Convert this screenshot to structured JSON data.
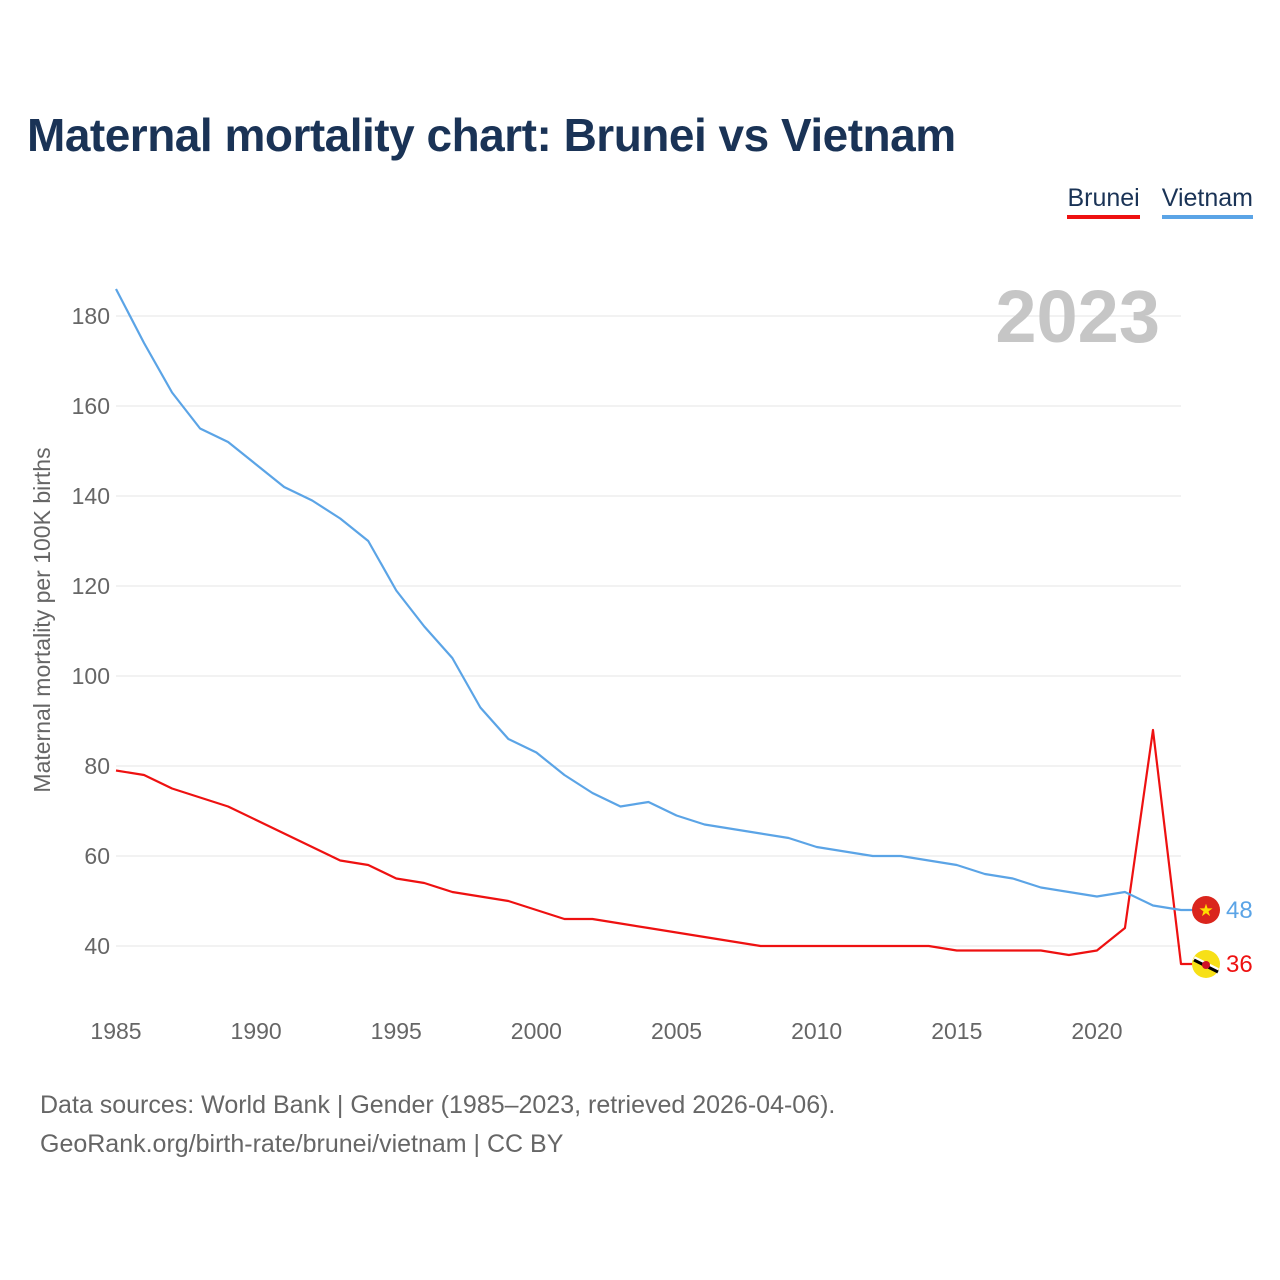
{
  "title": "Maternal mortality chart: Brunei vs Vietnam",
  "legend": [
    {
      "label": "Brunei",
      "color": "#ee1111"
    },
    {
      "label": "Vietnam",
      "color": "#5ba4e6"
    }
  ],
  "footer": {
    "line1": "Data sources: World Bank | Gender (1985–2023, retrieved 2026-04-06).",
    "line2": "GeoRank.org/birth-rate/brunei/vietnam | CC BY"
  },
  "chart_data": {
    "type": "line",
    "title": "Maternal mortality chart: Brunei vs Vietnam",
    "xlabel": "",
    "ylabel": "Maternal mortality per 100K births",
    "year_label": "2023",
    "xlim": [
      1985,
      2023
    ],
    "ylim": [
      28,
      188
    ],
    "x_ticks": [
      1985,
      1990,
      1995,
      2000,
      2005,
      2010,
      2015,
      2020
    ],
    "y_ticks": [
      40,
      60,
      80,
      100,
      120,
      140,
      160,
      180
    ],
    "grid": true,
    "legend_position": "top-right",
    "x": [
      1985,
      1986,
      1987,
      1988,
      1989,
      1990,
      1991,
      1992,
      1993,
      1994,
      1995,
      1996,
      1997,
      1998,
      1999,
      2000,
      2001,
      2002,
      2003,
      2004,
      2005,
      2006,
      2007,
      2008,
      2009,
      2010,
      2011,
      2012,
      2013,
      2014,
      2015,
      2016,
      2017,
      2018,
      2019,
      2020,
      2021,
      2022,
      2023
    ],
    "series": [
      {
        "name": "Brunei",
        "color": "#ee1111",
        "flag": "brunei-flag-icon",
        "end_label": "36",
        "values": [
          79,
          78,
          75,
          73,
          71,
          68,
          65,
          62,
          59,
          58,
          55,
          54,
          52,
          51,
          50,
          48,
          46,
          46,
          45,
          44,
          43,
          42,
          41,
          40,
          40,
          40,
          40,
          40,
          40,
          40,
          39,
          39,
          39,
          39,
          38,
          39,
          44,
          88,
          36
        ]
      },
      {
        "name": "Vietnam",
        "color": "#5ba4e6",
        "flag": "vietnam-flag-icon",
        "end_label": "48",
        "values": [
          186,
          174,
          163,
          155,
          152,
          147,
          142,
          139,
          135,
          130,
          119,
          111,
          104,
          93,
          86,
          83,
          78,
          74,
          71,
          72,
          69,
          67,
          66,
          65,
          64,
          62,
          61,
          60,
          60,
          59,
          58,
          56,
          55,
          53,
          52,
          51,
          52,
          49,
          48
        ]
      }
    ]
  }
}
